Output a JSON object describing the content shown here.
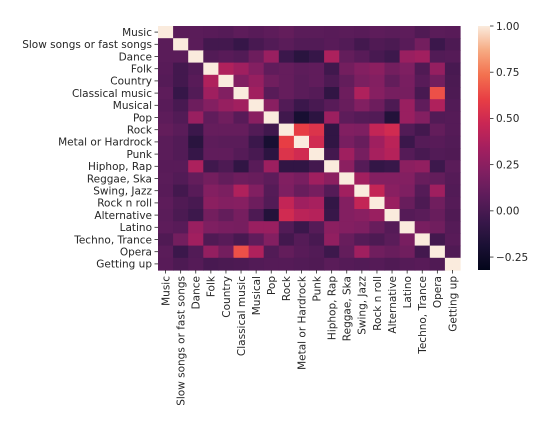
{
  "chart_data": {
    "type": "heatmap",
    "title": "",
    "xlabel": "",
    "ylabel": "",
    "labels": [
      "Music",
      "Slow songs or fast songs",
      "Dance",
      "Folk",
      "Country",
      "Classical music",
      "Musical",
      "Pop",
      "Rock",
      "Metal or Hardrock",
      "Punk",
      "Hiphop, Rap",
      "Reggae, Ska",
      "Swing, Jazz",
      "Rock n roll",
      "Alternative",
      "Latino",
      "Techno, Trance",
      "Opera",
      "Getting up"
    ],
    "values": [
      [
        1.0,
        0.07,
        0.07,
        0.06,
        0.05,
        0.08,
        0.06,
        0.08,
        0.1,
        0.07,
        0.07,
        0.06,
        0.07,
        0.06,
        0.08,
        0.07,
        0.08,
        0.03,
        0.07,
        0.06
      ],
      [
        0.07,
        1.0,
        0.07,
        -0.02,
        -0.02,
        -0.07,
        0.0,
        0.04,
        0.07,
        0.04,
        0.04,
        0.06,
        0.04,
        -0.02,
        0.03,
        0.01,
        0.06,
        0.16,
        -0.05,
        0.02
      ],
      [
        0.07,
        0.07,
        1.0,
        0.04,
        0.06,
        0.04,
        0.14,
        0.3,
        -0.05,
        -0.12,
        -0.07,
        0.37,
        0.1,
        0.06,
        0.0,
        -0.04,
        0.3,
        0.33,
        0.04,
        0.05
      ],
      [
        0.06,
        -0.02,
        0.04,
        1.0,
        0.38,
        0.32,
        0.22,
        0.09,
        0.11,
        0.08,
        0.09,
        -0.03,
        0.16,
        0.22,
        0.25,
        0.16,
        0.2,
        0.03,
        0.28,
        0.0
      ],
      [
        0.05,
        -0.02,
        0.06,
        0.38,
        1.0,
        0.21,
        0.29,
        0.15,
        0.11,
        0.07,
        0.09,
        0.02,
        0.1,
        0.19,
        0.22,
        0.1,
        0.18,
        0.06,
        0.16,
        0.01
      ],
      [
        0.08,
        -0.07,
        0.04,
        0.32,
        0.21,
        1.0,
        0.33,
        0.06,
        0.11,
        0.07,
        0.05,
        -0.09,
        0.14,
        0.38,
        0.23,
        0.17,
        0.17,
        0.0,
        0.65,
        0.02
      ],
      [
        0.06,
        0.0,
        0.14,
        0.22,
        0.29,
        0.33,
        1.0,
        0.24,
        0.04,
        -0.05,
        0.0,
        0.06,
        0.12,
        0.21,
        0.14,
        0.02,
        0.3,
        0.09,
        0.38,
        0.04
      ],
      [
        0.08,
        0.04,
        0.3,
        0.09,
        0.15,
        0.06,
        0.24,
        1.0,
        -0.03,
        -0.2,
        -0.11,
        0.31,
        0.08,
        0.05,
        0.04,
        -0.15,
        0.3,
        0.22,
        0.04,
        0.05
      ],
      [
        0.1,
        0.07,
        -0.05,
        0.11,
        0.11,
        0.11,
        0.04,
        -0.03,
        1.0,
        0.6,
        0.55,
        -0.09,
        0.21,
        0.2,
        0.45,
        0.5,
        0.04,
        -0.02,
        0.1,
        0.05
      ],
      [
        0.07,
        0.04,
        -0.12,
        0.08,
        0.07,
        0.07,
        -0.05,
        -0.2,
        0.6,
        1.0,
        0.5,
        -0.09,
        0.18,
        0.12,
        0.32,
        0.42,
        -0.05,
        0.05,
        0.06,
        0.04
      ],
      [
        0.07,
        0.04,
        -0.07,
        0.09,
        0.09,
        0.05,
        0.0,
        -0.11,
        0.55,
        0.5,
        1.0,
        -0.02,
        0.32,
        0.17,
        0.35,
        0.4,
        0.05,
        0.0,
        0.04,
        0.03
      ],
      [
        0.06,
        0.06,
        0.37,
        -0.03,
        0.02,
        -0.09,
        0.06,
        0.31,
        -0.09,
        -0.09,
        -0.02,
        1.0,
        0.25,
        0.05,
        -0.08,
        -0.06,
        0.25,
        0.27,
        -0.04,
        0.07
      ],
      [
        0.07,
        0.04,
        0.1,
        0.16,
        0.1,
        0.14,
        0.12,
        0.08,
        0.21,
        0.18,
        0.32,
        0.25,
        1.0,
        0.33,
        0.22,
        0.22,
        0.22,
        0.12,
        0.1,
        0.05
      ],
      [
        0.06,
        -0.02,
        0.06,
        0.22,
        0.19,
        0.38,
        0.21,
        0.05,
        0.2,
        0.12,
        0.17,
        0.05,
        0.33,
        1.0,
        0.45,
        0.24,
        0.2,
        0.05,
        0.32,
        0.04
      ],
      [
        0.08,
        0.03,
        0.0,
        0.25,
        0.22,
        0.23,
        0.14,
        0.04,
        0.45,
        0.32,
        0.35,
        -0.08,
        0.22,
        0.45,
        1.0,
        0.3,
        0.12,
        0.02,
        0.15,
        0.05
      ],
      [
        0.07,
        0.01,
        -0.04,
        0.16,
        0.1,
        0.17,
        0.02,
        -0.15,
        0.5,
        0.42,
        0.4,
        -0.06,
        0.22,
        0.24,
        0.3,
        1.0,
        0.05,
        0.07,
        0.12,
        0.03
      ],
      [
        0.08,
        0.06,
        0.3,
        0.2,
        0.18,
        0.17,
        0.3,
        0.3,
        0.04,
        -0.05,
        0.05,
        0.25,
        0.22,
        0.2,
        0.12,
        0.05,
        1.0,
        0.18,
        0.15,
        0.05
      ],
      [
        0.03,
        0.16,
        0.33,
        0.03,
        0.06,
        0.0,
        0.09,
        0.22,
        -0.02,
        0.05,
        0.0,
        0.27,
        0.12,
        0.05,
        0.02,
        0.07,
        0.18,
        1.0,
        -0.02,
        0.06
      ],
      [
        0.07,
        -0.05,
        0.04,
        0.28,
        0.16,
        0.65,
        0.38,
        0.04,
        0.1,
        0.06,
        0.04,
        -0.04,
        0.1,
        0.32,
        0.15,
        0.12,
        0.15,
        -0.02,
        1.0,
        0.03
      ],
      [
        0.06,
        0.02,
        0.05,
        0.0,
        0.01,
        0.02,
        0.04,
        0.05,
        0.05,
        0.04,
        0.03,
        0.07,
        0.05,
        0.04,
        0.05,
        0.03,
        0.05,
        0.06,
        0.03,
        1.0
      ]
    ],
    "vmin": -0.32,
    "vmax": 1.0,
    "colorbar_ticks": [
      1.0,
      0.75,
      0.5,
      0.25,
      0.0,
      -0.25
    ],
    "colorbar_tick_labels": [
      "1.00",
      "0.75",
      "0.50",
      "0.25",
      "0.00",
      "−0.25"
    ],
    "grid": false,
    "colormap": "rocket",
    "colorbar_position": "right"
  }
}
